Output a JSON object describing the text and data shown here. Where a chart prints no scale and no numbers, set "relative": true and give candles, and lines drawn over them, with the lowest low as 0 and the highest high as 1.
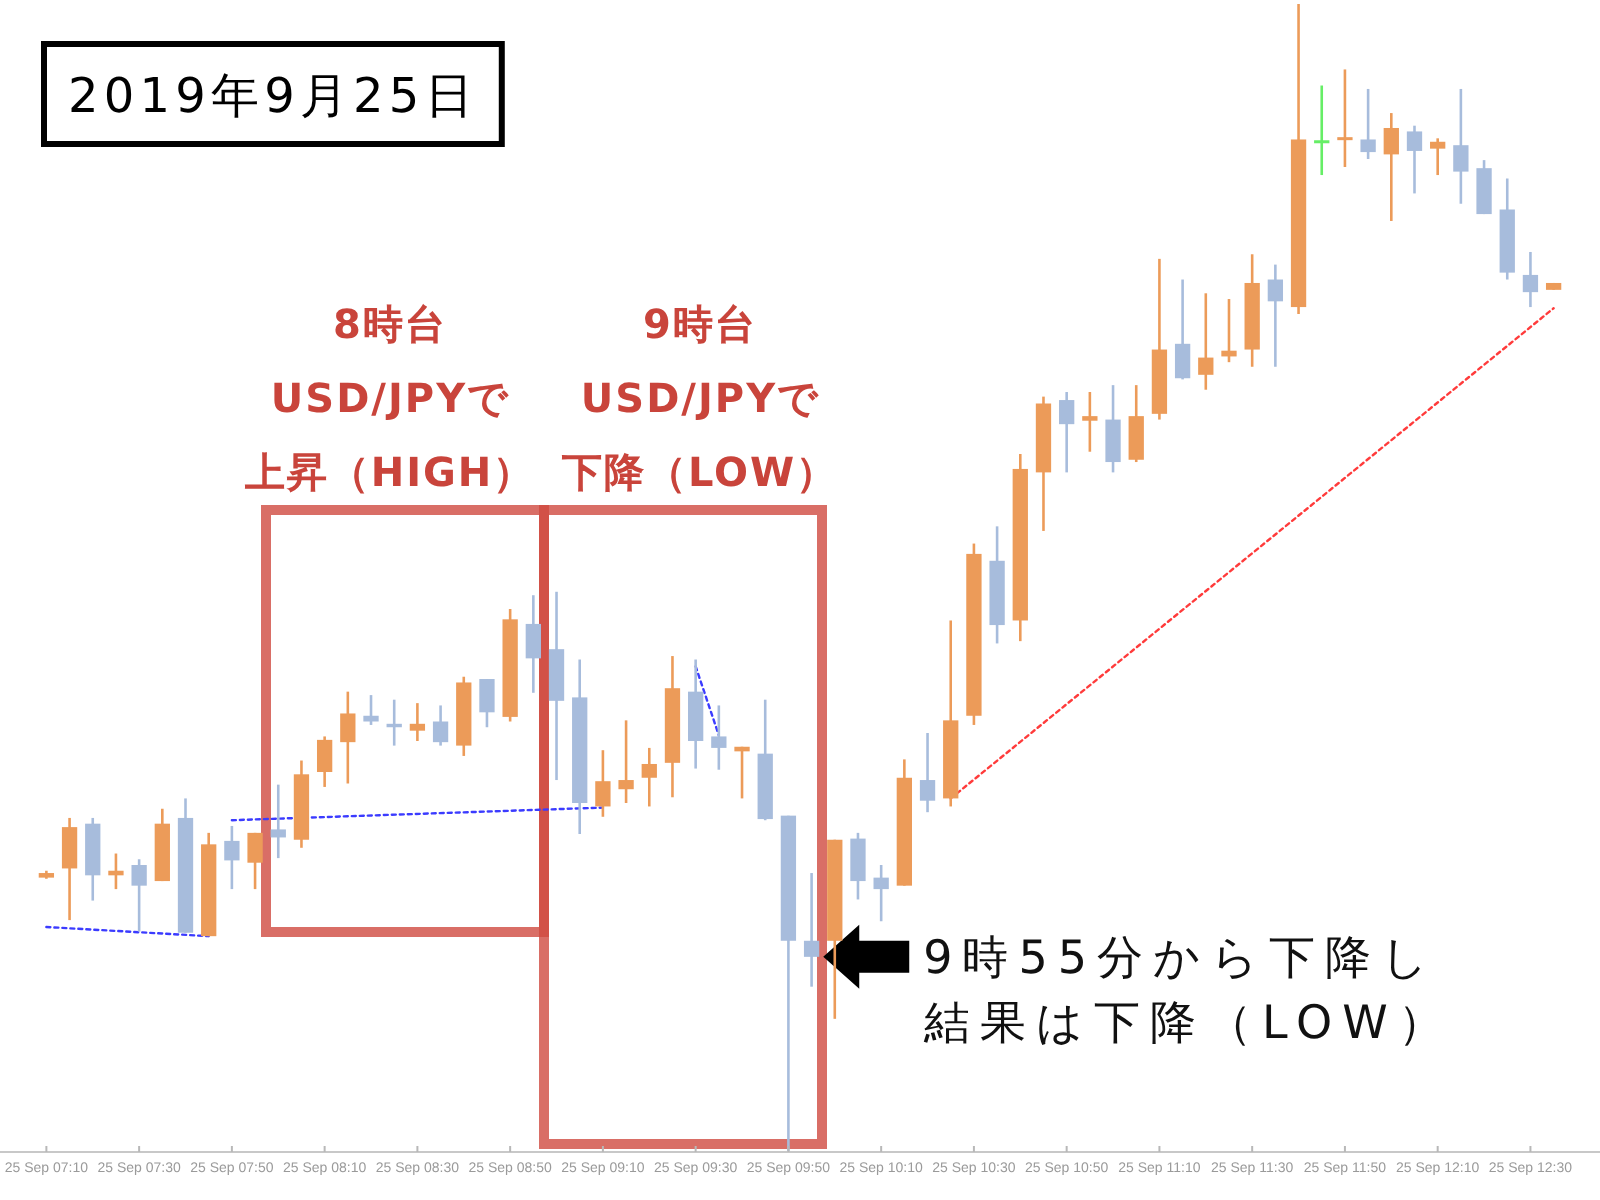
{
  "chart_data": {
    "type": "candlestick",
    "title": "2019年9月25日",
    "relative": true,
    "x": [
      "2019-09-25T07:10",
      "2019-09-25T07:15",
      "2019-09-25T07:20",
      "2019-09-25T07:25",
      "2019-09-25T07:30",
      "2019-09-25T07:35",
      "2019-09-25T07:40",
      "2019-09-25T07:45",
      "2019-09-25T07:50",
      "2019-09-25T07:55",
      "2019-09-25T08:00",
      "2019-09-25T08:05",
      "2019-09-25T08:10",
      "2019-09-25T08:15",
      "2019-09-25T08:20",
      "2019-09-25T08:25",
      "2019-09-25T08:30",
      "2019-09-25T08:35",
      "2019-09-25T08:40",
      "2019-09-25T08:45",
      "2019-09-25T08:50",
      "2019-09-25T08:55",
      "2019-09-25T09:00",
      "2019-09-25T09:05",
      "2019-09-25T09:10",
      "2019-09-25T09:15",
      "2019-09-25T09:20",
      "2019-09-25T09:25",
      "2019-09-25T09:30",
      "2019-09-25T09:35",
      "2019-09-25T09:40",
      "2019-09-25T09:45",
      "2019-09-25T09:50",
      "2019-09-25T09:55",
      "2019-09-25T10:00",
      "2019-09-25T10:05",
      "2019-09-25T10:10",
      "2019-09-25T10:15",
      "2019-09-25T10:20",
      "2019-09-25T10:25",
      "2019-09-25T10:30",
      "2019-09-25T10:35",
      "2019-09-25T10:40",
      "2019-09-25T10:45",
      "2019-09-25T10:50",
      "2019-09-25T10:55",
      "2019-09-25T11:00",
      "2019-09-25T11:05",
      "2019-09-25T11:10",
      "2019-09-25T11:15",
      "2019-09-25T11:20",
      "2019-09-25T11:25",
      "2019-09-25T11:30",
      "2019-09-25T11:35",
      "2019-09-25T11:40",
      "2019-09-25T11:45",
      "2019-09-25T11:50",
      "2019-09-25T11:55",
      "2019-09-25T12:00",
      "2019-09-25T12:05",
      "2019-09-25T12:10",
      "2019-09-25T12:15",
      "2019-09-25T12:20",
      "2019-09-25T12:25",
      "2019-09-25T12:30",
      "2019-09-25T12:35"
    ],
    "ohlc": [
      [
        0.239,
        0.245,
        0.238,
        0.243
      ],
      [
        0.247,
        0.291,
        0.202,
        0.283
      ],
      [
        0.286,
        0.291,
        0.219,
        0.241
      ],
      [
        0.241,
        0.26,
        0.229,
        0.245
      ],
      [
        0.25,
        0.255,
        0.192,
        0.232
      ],
      [
        0.236,
        0.299,
        0.236,
        0.286
      ],
      [
        0.291,
        0.308,
        0.191,
        0.191
      ],
      [
        0.188,
        0.278,
        0.188,
        0.268
      ],
      [
        0.271,
        0.284,
        0.229,
        0.254
      ],
      [
        0.252,
        0.278,
        0.229,
        0.278
      ],
      [
        0.281,
        0.32,
        0.256,
        0.274
      ],
      [
        0.272,
        0.341,
        0.265,
        0.329
      ],
      [
        0.331,
        0.362,
        0.318,
        0.359
      ],
      [
        0.357,
        0.401,
        0.321,
        0.382
      ],
      [
        0.38,
        0.398,
        0.372,
        0.375
      ],
      [
        0.373,
        0.394,
        0.354,
        0.37
      ],
      [
        0.367,
        0.391,
        0.358,
        0.373
      ],
      [
        0.375,
        0.389,
        0.354,
        0.357
      ],
      [
        0.354,
        0.414,
        0.345,
        0.409
      ],
      [
        0.412,
        0.412,
        0.37,
        0.383
      ],
      [
        0.379,
        0.473,
        0.375,
        0.464
      ],
      [
        0.46,
        0.485,
        0.4,
        0.43
      ],
      [
        0.438,
        0.488,
        0.324,
        0.393
      ],
      [
        0.396,
        0.429,
        0.277,
        0.304
      ],
      [
        0.301,
        0.35,
        0.292,
        0.323
      ],
      [
        0.316,
        0.376,
        0.304,
        0.324
      ],
      [
        0.326,
        0.352,
        0.301,
        0.338
      ],
      [
        0.339,
        0.432,
        0.309,
        0.404
      ],
      [
        0.401,
        0.429,
        0.334,
        0.358
      ],
      [
        0.362,
        0.389,
        0.333,
        0.352
      ],
      [
        0.349,
        0.353,
        0.308,
        0.353
      ],
      [
        0.347,
        0.394,
        0.289,
        0.29
      ],
      [
        0.293,
        0.293,
        0,
        0.184
      ],
      [
        0.184,
        0.243,
        0.144,
        0.17
      ],
      [
        0.184,
        0.272,
        0.116,
        0.272
      ],
      [
        0.273,
        0.278,
        0.22,
        0.236
      ],
      [
        0.239,
        0.25,
        0.201,
        0.229
      ],
      [
        0.232,
        0.342,
        0.232,
        0.326
      ],
      [
        0.324,
        0.365,
        0.296,
        0.306
      ],
      [
        0.308,
        0.463,
        0.301,
        0.376
      ],
      [
        0.38,
        0.53,
        0.372,
        0.521
      ],
      [
        0.515,
        0.545,
        0.443,
        0.459
      ],
      [
        0.463,
        0.608,
        0.445,
        0.595
      ],
      [
        0.592,
        0.658,
        0.541,
        0.652
      ],
      [
        0.655,
        0.662,
        0.592,
        0.634
      ],
      [
        0.637,
        0.662,
        0.61,
        0.641
      ],
      [
        0.638,
        0.668,
        0.592,
        0.601
      ],
      [
        0.603,
        0.668,
        0.601,
        0.641
      ],
      [
        0.643,
        0.778,
        0.638,
        0.699
      ],
      [
        0.704,
        0.76,
        0.673,
        0.674
      ],
      [
        0.677,
        0.748,
        0.664,
        0.692
      ],
      [
        0.693,
        0.743,
        0.688,
        0.698
      ],
      [
        0.699,
        0.782,
        0.684,
        0.757
      ],
      [
        0.76,
        0.773,
        0.684,
        0.741
      ],
      [
        0.736,
        1,
        0.73,
        0.882
      ],
      [
        0.88,
        0.929,
        0.851,
        0.88
      ],
      [
        0.882,
        0.943,
        0.858,
        0.884
      ],
      [
        0.882,
        0.926,
        0.865,
        0.871
      ],
      [
        0.869,
        0.905,
        0.811,
        0.892
      ],
      [
        0.889,
        0.894,
        0.835,
        0.872
      ],
      [
        0.874,
        0.883,
        0.851,
        0.88
      ],
      [
        0.877,
        0.926,
        0.826,
        0.854
      ],
      [
        0.857,
        0.864,
        0.817,
        0.817
      ],
      [
        0.821,
        0.848,
        0.76,
        0.766
      ],
      [
        0.764,
        0.784,
        0.736,
        0.749
      ],
      [
        0.751,
        0.757,
        0.751,
        0.757
      ]
    ],
    "colors": [
      "#ec9b59",
      "#ec9b59",
      "#a7bcdc",
      "#ec9b59",
      "#a7bcdc",
      "#ec9b59",
      "#a7bcdc",
      "#ec9b59",
      "#a7bcdc",
      "#ec9b59",
      "#a7bcdc",
      "#ec9b59",
      "#ec9b59",
      "#ec9b59",
      "#a7bcdc",
      "#a7bcdc",
      "#ec9b59",
      "#a7bcdc",
      "#ec9b59",
      "#a7bcdc",
      "#ec9b59",
      "#a7bcdc",
      "#a7bcdc",
      "#a7bcdc",
      "#ec9b59",
      "#ec9b59",
      "#ec9b59",
      "#ec9b59",
      "#a7bcdc",
      "#a7bcdc",
      "#ec9b59",
      "#a7bcdc",
      "#a7bcdc",
      "#a7bcdc",
      "#ec9b59",
      "#a7bcdc",
      "#a7bcdc",
      "#ec9b59",
      "#a7bcdc",
      "#ec9b59",
      "#ec9b59",
      "#a7bcdc",
      "#ec9b59",
      "#ec9b59",
      "#a7bcdc",
      "#ec9b59",
      "#a7bcdc",
      "#ec9b59",
      "#ec9b59",
      "#a7bcdc",
      "#ec9b59",
      "#ec9b59",
      "#ec9b59",
      "#a7bcdc",
      "#ec9b59",
      "#66ee66",
      "#ec9b59",
      "#a7bcdc",
      "#ec9b59",
      "#a7bcdc",
      "#ec9b59",
      "#a7bcdc",
      "#a7bcdc",
      "#a7bcdc",
      "#a7bcdc",
      "#ec9b59"
    ],
    "series": [
      {
        "type": "line",
        "x": [
          "2019-09-25T07:10",
          "2019-09-25T07:45"
        ],
        "values": [
          0.196,
          0.188
        ],
        "color": "#3b3bff"
      },
      {
        "type": "line",
        "x": [
          "2019-09-25T07:50",
          "2019-09-25T09:10"
        ],
        "values": [
          0.289,
          0.3
        ],
        "color": "#3b3bff"
      },
      {
        "type": "line",
        "x": [
          "2019-09-25T09:30",
          "2019-09-25T09:35"
        ],
        "values": [
          0.423,
          0.363
        ],
        "color": "#3b3bff"
      },
      {
        "type": "line",
        "x": [
          "2019-09-25T10:25",
          "2019-09-25T12:35"
        ],
        "values": [
          0.308,
          0.735
        ],
        "color": "#ff3b3b"
      }
    ],
    "line_style": "dotted",
    "xlim": [
      "2019-09-25T07:00",
      "2019-09-25T12:45"
    ],
    "xticks": [
      {
        "value": "2019-09-25T07:10",
        "label": "25 Sep 07:10"
      },
      {
        "value": "2019-09-25T07:30",
        "label": "25 Sep 07:30"
      },
      {
        "value": "2019-09-25T07:50",
        "label": "25 Sep 07:50"
      },
      {
        "value": "2019-09-25T08:10",
        "label": "25 Sep 08:10"
      },
      {
        "value": "2019-09-25T08:30",
        "label": "25 Sep 08:30"
      },
      {
        "value": "2019-09-25T08:50",
        "label": "25 Sep 08:50"
      },
      {
        "value": "2019-09-25T09:10",
        "label": "25 Sep 09:10"
      },
      {
        "value": "2019-09-25T09:30",
        "label": "25 Sep 09:30"
      },
      {
        "value": "2019-09-25T09:50",
        "label": "25 Sep 09:50"
      },
      {
        "value": "2019-09-25T10:10",
        "label": "25 Sep 10:10"
      },
      {
        "value": "2019-09-25T10:30",
        "label": "25 Sep 10:30"
      },
      {
        "value": "2019-09-25T10:50",
        "label": "25 Sep 10:50"
      },
      {
        "value": "2019-09-25T11:10",
        "label": "25 Sep 11:10"
      },
      {
        "value": "2019-09-25T11:30",
        "label": "25 Sep 11:30"
      },
      {
        "value": "2019-09-25T11:50",
        "label": "25 Sep 11:50"
      },
      {
        "value": "2019-09-25T12:10",
        "label": "25 Sep 12:10"
      },
      {
        "value": "2019-09-25T12:30",
        "label": "25 Sep 12:30"
      }
    ],
    "annotations": [
      "8時台",
      "USD/JPYで",
      "上昇（HIGH）",
      "9時台",
      "USD/JPYで",
      "下降（LOW）",
      {
        "text": "9時55分から下降し",
        "x": "2019-09-25T09:55",
        "y": 0.17
      },
      "結果は下降（LOW）"
    ]
  }
}
